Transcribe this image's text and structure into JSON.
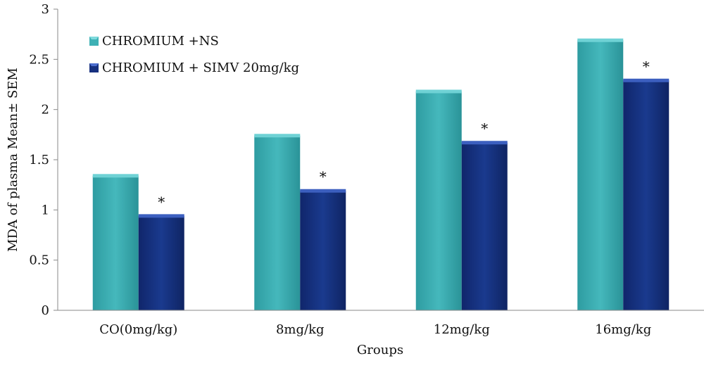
{
  "chart_data": {
    "type": "bar",
    "title": "",
    "xlabel": "Groups",
    "ylabel": "MDA of plasma Mean± SEM",
    "categories": [
      "CO(0mg/kg)",
      "8mg/kg",
      "12mg/kg",
      "16mg/kg"
    ],
    "series": [
      {
        "name": "CHROMIUM +NS",
        "values": [
          1.34,
          1.74,
          2.18,
          2.69
        ],
        "color": "#3EB1B5",
        "annotations": [
          "",
          "",
          "",
          ""
        ]
      },
      {
        "name": "CHROMIUM + SIMV 20mg/kg",
        "values": [
          0.94,
          1.19,
          1.67,
          2.29
        ],
        "color": "#16307F",
        "annotations": [
          "*",
          "*",
          "*",
          "*"
        ]
      }
    ],
    "ylim": [
      0,
      3
    ],
    "yticks": [
      0,
      0.5,
      1,
      1.5,
      2,
      2.5,
      3
    ],
    "ytick_labels": [
      "0",
      "0.5",
      "1",
      "1.5",
      "2",
      "2.5",
      "3"
    ],
    "grid": false,
    "legend_position": "top-left"
  }
}
